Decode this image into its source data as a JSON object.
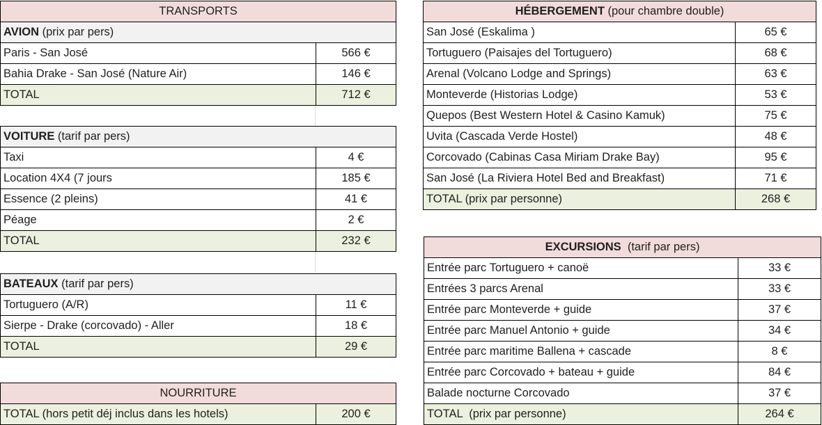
{
  "transports": {
    "title": "TRANSPORTS",
    "avion": {
      "heading_bold": "AVION",
      "heading_rest": " (prix par pers)",
      "rows": [
        {
          "label": "Paris - San José",
          "value": "566 €"
        },
        {
          "label": "Bahia Drake - San José (Nature Air)",
          "value": "146 €"
        }
      ],
      "total": {
        "label": "TOTAL",
        "value": "712 €"
      }
    },
    "voiture": {
      "heading_bold": "VOITURE",
      "heading_rest": " (tarif par pers)",
      "rows": [
        {
          "label": "Taxi",
          "value": "4 €"
        },
        {
          "label": "Location 4X4 (7 jours",
          "value": "185 €"
        },
        {
          "label": "Essence (2 pleins)",
          "value": "41 €"
        },
        {
          "label": "Péage",
          "value": "2 €"
        }
      ],
      "total": {
        "label": "TOTAL",
        "value": "232 €"
      }
    },
    "bateaux": {
      "heading_bold": "BATEAUX",
      "heading_rest": " (tarif par pers)",
      "rows": [
        {
          "label": "Tortuguero (A/R)",
          "value": "11 €"
        },
        {
          "label": "Sierpe - Drake (corcovado) - Aller",
          "value": "18 €"
        }
      ],
      "total": {
        "label": "TOTAL",
        "value": "29 €"
      }
    }
  },
  "nourriture": {
    "title": "NOURRITURE",
    "total": {
      "label": "TOTAL (hors petit déj inclus dans les hotels)",
      "value": "200 €"
    }
  },
  "hebergement": {
    "title_bold": "HÉBERGEMENT",
    "title_rest": " (pour chambre double)",
    "rows": [
      {
        "label": "San José (Eskalima )",
        "value": "65 €"
      },
      {
        "label": "Tortuguero (Paisajes del Tortuguero)",
        "value": "68 €"
      },
      {
        "label": "Arenal (Volcano Lodge and Springs)",
        "value": "63 €"
      },
      {
        "label": "Monteverde (Historias Lodge)",
        "value": "53 €"
      },
      {
        "label": "Quepos (Best Western Hotel & Casino Kamuk)",
        "value": "75 €"
      },
      {
        "label": "Uvita (Cascada Verde Hostel)",
        "value": "48 €"
      },
      {
        "label": "Corcovado (Cabinas Casa Miriam Drake Bay)",
        "value": "95 €"
      },
      {
        "label": "San José (La Riviera Hotel Bed and Breakfast)",
        "value": "71 €"
      }
    ],
    "total": {
      "label": "TOTAL (prix par personne)",
      "value": "268 €"
    }
  },
  "excursions": {
    "title_bold": "EXCURSIONS",
    "title_rest": "  (tarif par pers)",
    "rows": [
      {
        "label": "Entrée parc Tortuguero + canoë",
        "value": "33 €"
      },
      {
        "label": "Entrées 3 parcs Arenal",
        "value": "33 €"
      },
      {
        "label": "Entrée parc Monteverde + guide",
        "value": "37 €"
      },
      {
        "label": "Entrée parc Manuel Antonio + guide",
        "value": "34 €"
      },
      {
        "label": "Entrée parc maritime Ballena + cascade",
        "value": "8 €"
      },
      {
        "label": "Entrée parc Corcovado + bateau + guide",
        "value": "84 €"
      },
      {
        "label": "Balade nocturne Corcovado",
        "value": "37 €"
      }
    ],
    "total": {
      "label": "TOTAL  (prix par personne)",
      "value": "264 €"
    }
  }
}
